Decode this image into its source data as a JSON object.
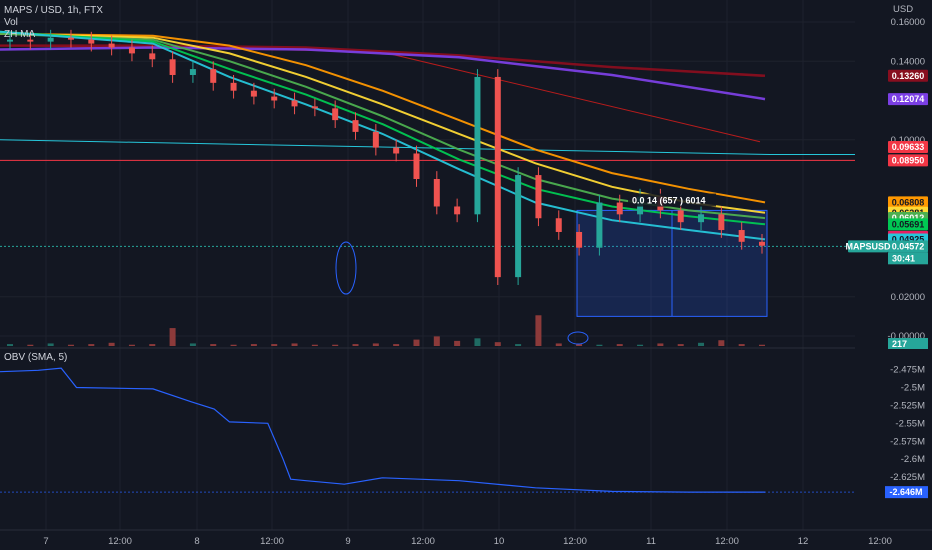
{
  "header": {
    "symbol_line": "MAPS / USD, 1h, FTX",
    "vol_label": "Vol",
    "ma_label": "ZH MA",
    "currency": "USD"
  },
  "obv": {
    "title": "OBV (SMA, 5)",
    "current_label": "-2.646M"
  },
  "price_axis": {
    "ticks": [
      {
        "label": "0.16000",
        "v": 0.16
      },
      {
        "label": "0.14000",
        "v": 0.14
      },
      {
        "label": "0.10000",
        "v": 0.1
      },
      {
        "label": "0.02000",
        "v": 0.02
      },
      {
        "label": "-0.00000",
        "v": 0.0
      }
    ]
  },
  "obv_axis": {
    "ticks": [
      {
        "label": "-2.475M",
        "v": -2.475
      },
      {
        "label": "-2.5M",
        "v": -2.5
      },
      {
        "label": "-2.525M",
        "v": -2.525
      },
      {
        "label": "-2.55M",
        "v": -2.55
      },
      {
        "label": "-2.575M",
        "v": -2.575
      },
      {
        "label": "-2.6M",
        "v": -2.6
      },
      {
        "label": "-2.625M",
        "v": -2.625
      }
    ]
  },
  "time_axis": [
    "7",
    "12:00",
    "8",
    "12:00",
    "9",
    "12:00",
    "10",
    "12:00",
    "11",
    "12:00",
    "12",
    "12:00"
  ],
  "badges": [
    {
      "label": "0.13260",
      "v": 0.1326,
      "bg": "#880e1f",
      "fg": "#ffffff"
    },
    {
      "label": "0.12074",
      "v": 0.1207,
      "bg": "#7b3fe4",
      "fg": "#ffffff"
    },
    {
      "label": "0.09633",
      "v": 0.0963,
      "bg": "#f23645",
      "fg": "#ffffff"
    },
    {
      "label": "0.08950",
      "v": 0.0895,
      "bg": "#f23645",
      "fg": "#ffffff"
    },
    {
      "label": "0.06808",
      "v": 0.0681,
      "bg": "#ff9800",
      "fg": "#131722"
    },
    {
      "label": "0.06281",
      "v": 0.0628,
      "bg": "#fdd835",
      "fg": "#131722"
    },
    {
      "label": "0.06012",
      "v": 0.0601,
      "bg": "#4caf50",
      "fg": "#ffffff"
    },
    {
      "label": "0.05691",
      "v": 0.0569,
      "bg": "#00c853",
      "fg": "#131722"
    },
    {
      "label": "0.05052",
      "v": 0.0505,
      "bg": "#e91e63",
      "fg": "#ffffff"
    },
    {
      "label": "0.04925",
      "v": 0.0492,
      "bg": "#26c6da",
      "fg": "#131722"
    },
    {
      "label": "0.04572",
      "v": 0.0457,
      "bg": "#26a69a",
      "fg": "#ffffff"
    }
  ],
  "symbol_badge": {
    "label": "MAPSUSD",
    "v": 0.0457
  },
  "countdown": "30:41",
  "volume_badge": "217",
  "measure_label": "0.0 14 (657 ) 6014",
  "colors": {
    "up": "#26a69a",
    "down": "#ef5350",
    "grid": "#1e222d",
    "ma_darkred": "#880e1f",
    "ma_purple": "#7b3fe4",
    "ma_orange": "#ff9800",
    "ma_yellow": "#fdd835",
    "ma_green": "#4caf50",
    "ma_lime": "#00c853",
    "ma_cyan": "#26c6da",
    "ma_pink": "#e91e63",
    "obv_line": "#2962ff"
  },
  "chart_data": {
    "type": "line",
    "price_range": [
      0.0,
      0.16
    ],
    "ma_lines": [
      {
        "key": "ma_darkred",
        "x": [
          0,
          20,
          40,
          60,
          80,
          100
        ],
        "y": [
          0.148,
          0.148,
          0.147,
          0.143,
          0.137,
          0.1326
        ]
      },
      {
        "key": "ma_purple",
        "x": [
          0,
          20,
          40,
          60,
          80,
          100
        ],
        "y": [
          0.146,
          0.147,
          0.146,
          0.142,
          0.133,
          0.1207
        ]
      },
      {
        "key": "ma_orange",
        "x": [
          0,
          20,
          30,
          40,
          50,
          60,
          70,
          80,
          90,
          100
        ],
        "y": [
          0.154,
          0.153,
          0.148,
          0.138,
          0.125,
          0.11,
          0.095,
          0.083,
          0.075,
          0.0681
        ]
      },
      {
        "key": "ma_yellow",
        "x": [
          0,
          20,
          30,
          40,
          50,
          60,
          70,
          80,
          90,
          100
        ],
        "y": [
          0.154,
          0.152,
          0.144,
          0.132,
          0.118,
          0.103,
          0.088,
          0.076,
          0.068,
          0.0628
        ]
      },
      {
        "key": "ma_green",
        "x": [
          0,
          20,
          30,
          40,
          50,
          60,
          70,
          80,
          90,
          100
        ],
        "y": [
          0.154,
          0.151,
          0.14,
          0.127,
          0.112,
          0.095,
          0.08,
          0.07,
          0.064,
          0.0601
        ]
      },
      {
        "key": "ma_lime",
        "x": [
          0,
          20,
          30,
          40,
          50,
          60,
          70,
          80,
          90,
          100
        ],
        "y": [
          0.155,
          0.15,
          0.136,
          0.123,
          0.108,
          0.09,
          0.075,
          0.066,
          0.061,
          0.0569
        ]
      },
      {
        "key": "ma_cyan",
        "x": [
          0,
          20,
          30,
          40,
          50,
          60,
          70,
          80,
          90,
          100
        ],
        "y": [
          0.155,
          0.149,
          0.132,
          0.118,
          0.103,
          0.085,
          0.068,
          0.059,
          0.054,
          0.0492
        ]
      }
    ],
    "obv_line": {
      "x": [
        0,
        5,
        8,
        10,
        20,
        25,
        28,
        30,
        35,
        37,
        38,
        40,
        45,
        50,
        60,
        70,
        80,
        90,
        100
      ],
      "y": [
        -2.478,
        -2.476,
        -2.473,
        -2.5,
        -2.502,
        -2.52,
        -2.53,
        -2.548,
        -2.55,
        -2.6,
        -2.628,
        -2.63,
        -2.635,
        -2.626,
        -2.63,
        -2.64,
        -2.645,
        -2.646,
        -2.646
      ]
    },
    "candles": [
      {
        "o": 0.15,
        "c": 0.151
      },
      {
        "o": 0.151,
        "c": 0.15
      },
      {
        "o": 0.15,
        "c": 0.152
      },
      {
        "o": 0.152,
        "c": 0.151
      },
      {
        "o": 0.151,
        "c": 0.149
      },
      {
        "o": 0.149,
        "c": 0.147
      },
      {
        "o": 0.147,
        "c": 0.144
      },
      {
        "o": 0.144,
        "c": 0.141
      },
      {
        "o": 0.141,
        "c": 0.133
      },
      {
        "o": 0.133,
        "c": 0.136
      },
      {
        "o": 0.136,
        "c": 0.129
      },
      {
        "o": 0.129,
        "c": 0.125
      },
      {
        "o": 0.125,
        "c": 0.122
      },
      {
        "o": 0.122,
        "c": 0.12
      },
      {
        "o": 0.12,
        "c": 0.117
      },
      {
        "o": 0.117,
        "c": 0.116
      },
      {
        "o": 0.116,
        "c": 0.11
      },
      {
        "o": 0.11,
        "c": 0.104
      },
      {
        "o": 0.104,
        "c": 0.096
      },
      {
        "o": 0.096,
        "c": 0.093
      },
      {
        "o": 0.093,
        "c": 0.08
      },
      {
        "o": 0.08,
        "c": 0.066
      },
      {
        "o": 0.066,
        "c": 0.062
      },
      {
        "o": 0.062,
        "c": 0.132
      },
      {
        "o": 0.132,
        "c": 0.03
      },
      {
        "o": 0.03,
        "c": 0.082
      },
      {
        "o": 0.082,
        "c": 0.06
      },
      {
        "o": 0.06,
        "c": 0.053
      },
      {
        "o": 0.053,
        "c": 0.045
      },
      {
        "o": 0.045,
        "c": 0.068
      },
      {
        "o": 0.068,
        "c": 0.062
      },
      {
        "o": 0.062,
        "c": 0.071
      },
      {
        "o": 0.071,
        "c": 0.064
      },
      {
        "o": 0.064,
        "c": 0.058
      },
      {
        "o": 0.058,
        "c": 0.062
      },
      {
        "o": 0.062,
        "c": 0.054
      },
      {
        "o": 0.054,
        "c": 0.048
      },
      {
        "o": 0.048,
        "c": 0.046
      }
    ],
    "volumes": [
      3,
      2,
      4,
      2,
      3,
      5,
      2,
      3,
      28,
      4,
      3,
      2,
      3,
      3,
      4,
      2,
      2,
      3,
      4,
      3,
      10,
      15,
      8,
      12,
      6,
      3,
      48,
      4,
      3,
      2,
      3,
      2,
      4,
      3,
      5,
      9,
      3,
      2
    ]
  }
}
